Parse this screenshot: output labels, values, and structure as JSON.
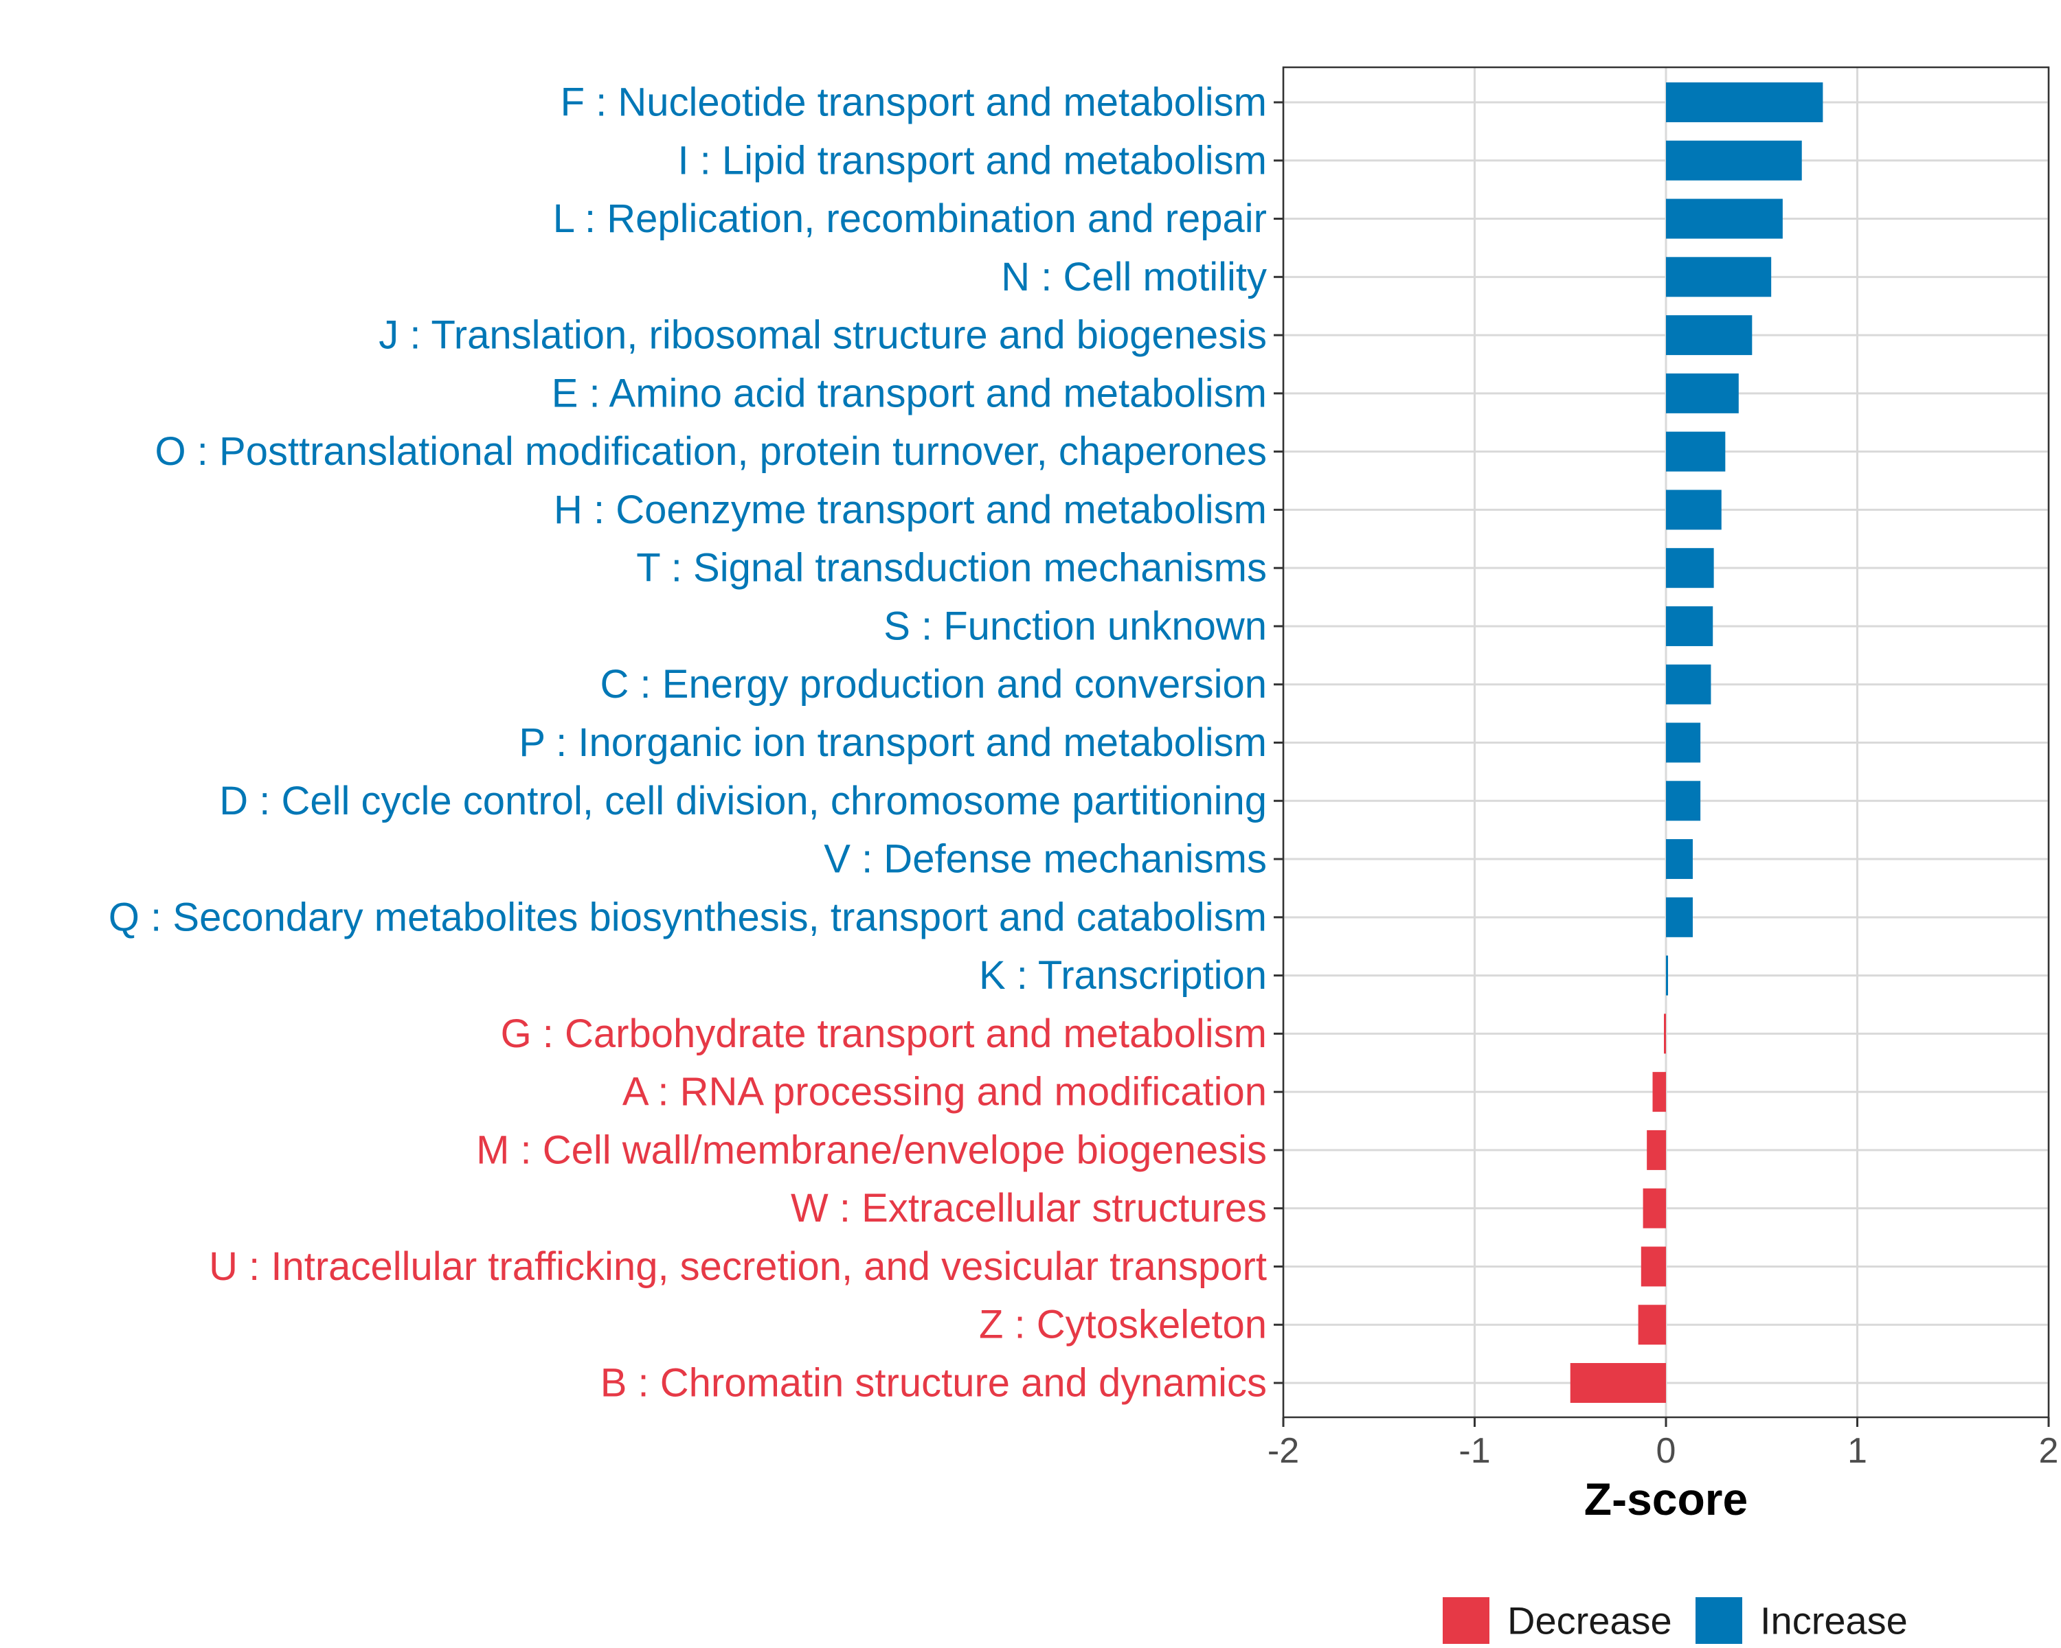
{
  "chart_data": {
    "type": "bar",
    "orientation": "horizontal",
    "xlabel": "Z-score",
    "xlim": [
      -2,
      2
    ],
    "xticks": [
      -2,
      -1,
      0,
      1,
      2
    ],
    "xtick_labels": [
      "-2",
      "-1",
      "0",
      "1",
      "2"
    ],
    "grid": true,
    "colors": {
      "Decrease": "#E63946",
      "Increase": "#0077B6"
    },
    "categories": [
      "F : Nucleotide transport and metabolism",
      "I : Lipid transport and metabolism",
      "L : Replication, recombination and repair",
      "N : Cell motility",
      "J : Translation, ribosomal structure and biogenesis",
      "E : Amino acid transport and metabolism",
      "O : Posttranslational modification, protein turnover, chaperones",
      "H : Coenzyme transport and metabolism",
      "T : Signal transduction mechanisms",
      "S : Function unknown",
      "C : Energy production and conversion",
      "P : Inorganic ion transport and metabolism",
      "D : Cell cycle control, cell division, chromosome partitioning",
      "V : Defense mechanisms",
      "Q : Secondary metabolites biosynthesis, transport and catabolism",
      "K : Transcription",
      "G : Carbohydrate transport and metabolism",
      "A : RNA processing and modification",
      "M : Cell wall/membrane/envelope biogenesis",
      "W : Extracellular structures",
      "U : Intracellular trafficking, secretion, and vesicular transport",
      "Z : Cytoskeleton",
      "B : Chromatin structure and dynamics"
    ],
    "values": [
      0.82,
      0.71,
      0.61,
      0.55,
      0.45,
      0.38,
      0.31,
      0.29,
      0.25,
      0.245,
      0.235,
      0.18,
      0.18,
      0.14,
      0.14,
      0.01,
      -0.01,
      -0.07,
      -0.1,
      -0.12,
      -0.13,
      -0.145,
      -0.5
    ],
    "groups": [
      "Increase",
      "Increase",
      "Increase",
      "Increase",
      "Increase",
      "Increase",
      "Increase",
      "Increase",
      "Increase",
      "Increase",
      "Increase",
      "Increase",
      "Increase",
      "Increase",
      "Increase",
      "Increase",
      "Decrease",
      "Decrease",
      "Decrease",
      "Decrease",
      "Decrease",
      "Decrease",
      "Decrease"
    ],
    "legend": {
      "position": "bottom",
      "entries": [
        "Decrease",
        "Increase"
      ]
    }
  }
}
